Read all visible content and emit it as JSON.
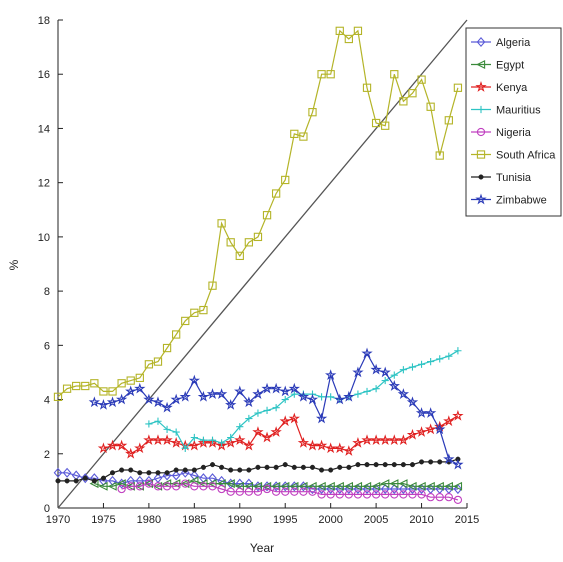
{
  "chart_data": {
    "type": "line",
    "title": "",
    "xlabel": "Year",
    "ylabel": "%",
    "xlim": [
      1970,
      2015
    ],
    "ylim": [
      0,
      18
    ],
    "xticks": [
      1970,
      1975,
      1980,
      1985,
      1990,
      1995,
      2000,
      2005,
      2010,
      2015
    ],
    "yticks": [
      0,
      2,
      4,
      6,
      8,
      10,
      12,
      14,
      16,
      18
    ],
    "grid": false,
    "legend_position": "top-right",
    "reference_line": {
      "x": [
        1970,
        2015
      ],
      "y": [
        0,
        18
      ]
    },
    "series": [
      {
        "name": "Algeria",
        "color": "#5a5ad8",
        "marker": "diamond",
        "x": [
          1970,
          1971,
          1972,
          1973,
          1974,
          1975,
          1976,
          1977,
          1978,
          1979,
          1980,
          1981,
          1982,
          1983,
          1984,
          1985,
          1986,
          1987,
          1988,
          1989,
          1990,
          1991,
          1992,
          1993,
          1994,
          1995,
          1996,
          1997,
          1998,
          1999,
          2000,
          2001,
          2002,
          2003,
          2004,
          2005,
          2006,
          2007,
          2008,
          2009,
          2010,
          2011,
          2012,
          2013,
          2014
        ],
        "values": [
          1.3,
          1.3,
          1.2,
          1.1,
          1.1,
          1.0,
          1.0,
          0.9,
          1.0,
          1.0,
          1.0,
          1.1,
          1.2,
          1.2,
          1.3,
          1.2,
          1.1,
          1.1,
          1.0,
          0.9,
          0.9,
          0.9,
          0.8,
          0.8,
          0.8,
          0.8,
          0.8,
          0.8,
          0.7,
          0.7,
          0.7,
          0.7,
          0.7,
          0.7,
          0.7,
          0.7,
          0.7,
          0.7,
          0.7,
          0.7,
          0.7,
          0.7,
          0.7,
          0.7,
          0.7
        ]
      },
      {
        "name": "Egypt",
        "color": "#3a8a3a",
        "marker": "triangle-left",
        "x": [
          1974,
          1975,
          1976,
          1977,
          1978,
          1979,
          1980,
          1981,
          1982,
          1983,
          1984,
          1985,
          1986,
          1987,
          1988,
          1989,
          1990,
          1991,
          1992,
          1993,
          1994,
          1995,
          1996,
          1997,
          1998,
          1999,
          2000,
          2001,
          2002,
          2003,
          2004,
          2005,
          2006,
          2007,
          2008,
          2009,
          2010,
          2011,
          2012,
          2013,
          2014
        ],
        "values": [
          0.9,
          0.8,
          0.8,
          0.9,
          0.8,
          0.8,
          0.9,
          0.8,
          0.9,
          0.9,
          0.9,
          1.0,
          0.9,
          0.9,
          0.9,
          0.9,
          0.8,
          0.8,
          0.8,
          0.8,
          0.8,
          0.8,
          0.8,
          0.8,
          0.8,
          0.8,
          0.8,
          0.8,
          0.8,
          0.8,
          0.8,
          0.8,
          0.9,
          0.9,
          0.9,
          0.8,
          0.8,
          0.8,
          0.8,
          0.8,
          0.8
        ]
      },
      {
        "name": "Kenya",
        "color": "#e02020",
        "marker": "star",
        "x": [
          1975,
          1976,
          1977,
          1978,
          1979,
          1980,
          1981,
          1982,
          1983,
          1984,
          1985,
          1986,
          1987,
          1988,
          1989,
          1990,
          1991,
          1992,
          1993,
          1994,
          1995,
          1996,
          1997,
          1998,
          1999,
          2000,
          2001,
          2002,
          2003,
          2004,
          2005,
          2006,
          2007,
          2008,
          2009,
          2010,
          2011,
          2012,
          2013,
          2014
        ],
        "values": [
          2.2,
          2.3,
          2.3,
          2.0,
          2.2,
          2.5,
          2.5,
          2.5,
          2.4,
          2.3,
          2.3,
          2.4,
          2.4,
          2.3,
          2.4,
          2.5,
          2.3,
          2.8,
          2.6,
          2.8,
          3.2,
          3.3,
          2.4,
          2.3,
          2.3,
          2.2,
          2.2,
          2.1,
          2.4,
          2.5,
          2.5,
          2.5,
          2.5,
          2.5,
          2.7,
          2.8,
          2.9,
          3.0,
          3.2,
          3.4
        ]
      },
      {
        "name": "Mauritius",
        "color": "#2ec4c4",
        "marker": "plus",
        "x": [
          1980,
          1981,
          1982,
          1983,
          1984,
          1985,
          1986,
          1987,
          1988,
          1989,
          1990,
          1991,
          1992,
          1993,
          1994,
          1995,
          1996,
          1997,
          1998,
          1999,
          2000,
          2001,
          2002,
          2003,
          2004,
          2005,
          2006,
          2007,
          2008,
          2009,
          2010,
          2011,
          2012,
          2013,
          2014
        ],
        "values": [
          3.1,
          3.2,
          2.9,
          2.8,
          2.2,
          2.6,
          2.5,
          2.5,
          2.4,
          2.6,
          3.0,
          3.3,
          3.5,
          3.6,
          3.7,
          4.0,
          4.2,
          4.2,
          4.2,
          4.1,
          4.1,
          4.0,
          4.1,
          4.2,
          4.3,
          4.4,
          4.7,
          4.9,
          5.1,
          5.2,
          5.3,
          5.4,
          5.5,
          5.6,
          5.8
        ]
      },
      {
        "name": "Nigeria",
        "color": "#c040c0",
        "marker": "circle",
        "x": [
          1977,
          1978,
          1979,
          1980,
          1981,
          1982,
          1983,
          1984,
          1985,
          1986,
          1987,
          1988,
          1989,
          1990,
          1991,
          1992,
          1993,
          1994,
          1995,
          1996,
          1997,
          1998,
          1999,
          2000,
          2001,
          2002,
          2003,
          2004,
          2005,
          2006,
          2007,
          2008,
          2009,
          2010,
          2011,
          2012,
          2013,
          2014
        ],
        "values": [
          0.7,
          0.8,
          0.8,
          0.9,
          0.8,
          0.8,
          0.8,
          0.9,
          0.8,
          0.8,
          0.8,
          0.7,
          0.6,
          0.6,
          0.6,
          0.6,
          0.7,
          0.6,
          0.6,
          0.6,
          0.6,
          0.6,
          0.5,
          0.5,
          0.5,
          0.5,
          0.5,
          0.5,
          0.5,
          0.5,
          0.5,
          0.5,
          0.5,
          0.5,
          0.4,
          0.4,
          0.4,
          0.3
        ]
      },
      {
        "name": "South Africa",
        "color": "#b4b428",
        "marker": "square",
        "x": [
          1970,
          1971,
          1972,
          1973,
          1974,
          1975,
          1976,
          1977,
          1978,
          1979,
          1980,
          1981,
          1982,
          1983,
          1984,
          1985,
          1986,
          1987,
          1988,
          1989,
          1990,
          1991,
          1992,
          1993,
          1994,
          1995,
          1996,
          1997,
          1998,
          1999,
          2000,
          2001,
          2002,
          2003,
          2004,
          2005,
          2006,
          2007,
          2008,
          2009,
          2010,
          2011,
          2012,
          2013,
          2014
        ],
        "values": [
          4.1,
          4.4,
          4.5,
          4.5,
          4.6,
          4.3,
          4.3,
          4.6,
          4.7,
          4.8,
          5.3,
          5.4,
          5.9,
          6.4,
          6.9,
          7.2,
          7.3,
          8.2,
          10.5,
          9.8,
          9.3,
          9.8,
          10.0,
          10.8,
          11.6,
          12.1,
          13.8,
          13.7,
          14.6,
          16.0,
          16.0,
          17.6,
          17.3,
          17.6,
          15.5,
          14.2,
          14.1,
          16.0,
          15.0,
          15.3,
          15.8,
          14.8,
          13.0,
          14.3,
          15.5
        ]
      },
      {
        "name": "Tunisia",
        "color": "#222222",
        "marker": "dot",
        "x": [
          1970,
          1971,
          1972,
          1973,
          1974,
          1975,
          1976,
          1977,
          1978,
          1979,
          1980,
          1981,
          1982,
          1983,
          1984,
          1985,
          1986,
          1987,
          1988,
          1989,
          1990,
          1991,
          1992,
          1993,
          1994,
          1995,
          1996,
          1997,
          1998,
          1999,
          2000,
          2001,
          2002,
          2003,
          2004,
          2005,
          2006,
          2007,
          2008,
          2009,
          2010,
          2011,
          2012,
          2013,
          2014
        ],
        "values": [
          1.0,
          1.0,
          1.0,
          1.1,
          1.0,
          1.1,
          1.3,
          1.4,
          1.4,
          1.3,
          1.3,
          1.3,
          1.3,
          1.4,
          1.4,
          1.4,
          1.5,
          1.6,
          1.5,
          1.4,
          1.4,
          1.4,
          1.5,
          1.5,
          1.5,
          1.6,
          1.5,
          1.5,
          1.5,
          1.4,
          1.4,
          1.5,
          1.5,
          1.6,
          1.6,
          1.6,
          1.6,
          1.6,
          1.6,
          1.6,
          1.7,
          1.7,
          1.7,
          1.7,
          1.8
        ]
      },
      {
        "name": "Zimbabwe",
        "color": "#2a3ab8",
        "marker": "star",
        "x": [
          1974,
          1975,
          1976,
          1977,
          1978,
          1979,
          1980,
          1981,
          1982,
          1983,
          1984,
          1985,
          1986,
          1987,
          1988,
          1989,
          1990,
          1991,
          1992,
          1993,
          1994,
          1995,
          1996,
          1997,
          1998,
          1999,
          2000,
          2001,
          2002,
          2003,
          2004,
          2005,
          2006,
          2007,
          2008,
          2009,
          2010,
          2011,
          2012,
          2013,
          2014
        ],
        "values": [
          3.9,
          3.8,
          3.9,
          4.0,
          4.3,
          4.4,
          4.0,
          3.9,
          3.7,
          4.0,
          4.1,
          4.7,
          4.1,
          4.2,
          4.2,
          3.8,
          4.3,
          3.9,
          4.2,
          4.4,
          4.4,
          4.3,
          4.4,
          4.1,
          4.0,
          3.3,
          4.9,
          4.0,
          4.1,
          5.0,
          5.7,
          5.1,
          5.0,
          4.5,
          4.2,
          3.9,
          3.5,
          3.5,
          2.9,
          1.8,
          1.6
        ]
      }
    ]
  }
}
